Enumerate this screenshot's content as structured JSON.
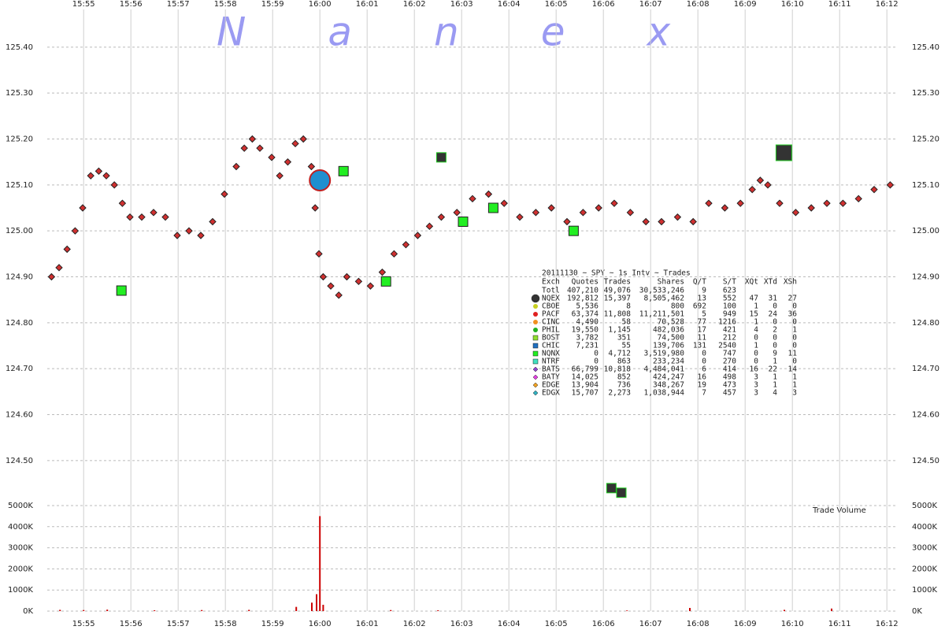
{
  "chart_data": {
    "type": "scatter",
    "watermark": "Nanex",
    "xlim": [
      954.23,
      972.23
    ],
    "xticks": [
      {
        "value": 955,
        "label": "15:55"
      },
      {
        "value": 956,
        "label": "15:56"
      },
      {
        "value": 957,
        "label": "15:57"
      },
      {
        "value": 958,
        "label": "15:58"
      },
      {
        "value": 959,
        "label": "15:59"
      },
      {
        "value": 960,
        "label": "16:00"
      },
      {
        "value": 961,
        "label": "16:01"
      },
      {
        "value": 962,
        "label": "16:02"
      },
      {
        "value": 963,
        "label": "16:03"
      },
      {
        "value": 964,
        "label": "16:04"
      },
      {
        "value": 965,
        "label": "16:05"
      },
      {
        "value": 966,
        "label": "16:06"
      },
      {
        "value": 967,
        "label": "16:07"
      },
      {
        "value": 968,
        "label": "16:08"
      },
      {
        "value": 969,
        "label": "16:09"
      },
      {
        "value": 970,
        "label": "16:10"
      },
      {
        "value": 971,
        "label": "16:11"
      },
      {
        "value": 972,
        "label": "16:12"
      }
    ],
    "ylim": [
      124.414,
      125.482
    ],
    "yticks": [
      {
        "value": 124.5,
        "label": "124.50"
      },
      {
        "value": 124.6,
        "label": "124.60"
      },
      {
        "value": 124.7,
        "label": "124.70"
      },
      {
        "value": 124.8,
        "label": "124.80"
      },
      {
        "value": 124.9,
        "label": "124.90"
      },
      {
        "value": 125.0,
        "label": "125.00"
      },
      {
        "value": 125.1,
        "label": "125.10"
      },
      {
        "value": 125.2,
        "label": "125.20"
      },
      {
        "value": 125.3,
        "label": "125.30"
      },
      {
        "value": 125.4,
        "label": "125.40"
      }
    ],
    "grid": true,
    "series": [
      {
        "color": "#d03030",
        "marker": "diamond",
        "size": 4,
        "x": [
          954.32,
          954.48,
          954.65,
          954.82,
          954.98,
          955.15,
          955.32,
          955.48,
          955.65,
          955.82,
          955.98,
          956.23,
          956.48,
          956.73,
          956.98,
          957.23,
          957.48,
          957.73,
          957.98,
          958.23,
          958.4,
          958.57,
          958.73,
          958.98,
          959.15,
          959.32,
          959.48,
          959.65,
          959.82,
          959.9,
          959.98,
          960.07,
          960.23,
          960.4,
          960.57,
          960.82,
          961.07,
          961.32,
          961.57,
          961.82,
          962.07,
          962.32,
          962.57,
          962.9,
          963.23,
          963.57,
          963.9,
          964.23,
          964.57,
          964.9,
          965.23,
          965.57,
          965.9,
          966.23,
          966.57,
          966.9,
          967.23,
          967.57,
          967.9,
          968.23,
          968.57,
          968.9,
          969.15,
          969.32,
          969.48,
          969.73,
          970.07,
          970.4,
          970.73,
          971.07,
          971.4,
          971.73,
          972.07
        ],
        "values": [
          124.9,
          124.92,
          124.96,
          125.0,
          125.05,
          125.12,
          125.13,
          125.12,
          125.1,
          125.06,
          125.03,
          125.03,
          125.04,
          125.03,
          124.99,
          125.0,
          124.99,
          125.02,
          125.08,
          125.14,
          125.18,
          125.2,
          125.18,
          125.16,
          125.12,
          125.15,
          125.19,
          125.2,
          125.14,
          125.05,
          124.95,
          124.9,
          124.88,
          124.86,
          124.9,
          124.89,
          124.88,
          124.91,
          124.95,
          124.97,
          124.99,
          125.01,
          125.03,
          125.04,
          125.07,
          125.08,
          125.06,
          125.03,
          125.04,
          125.05,
          125.02,
          125.04,
          125.05,
          125.06,
          125.04,
          125.02,
          125.02,
          125.03,
          125.02,
          125.06,
          125.05,
          125.06,
          125.09,
          125.11,
          125.1,
          125.06,
          125.04,
          125.05,
          125.06,
          125.06,
          125.07,
          125.09,
          125.1
        ]
      },
      {
        "color": "#22ee22",
        "marker": "square",
        "size": 6,
        "x": [
          955.8,
          960.5,
          961.4,
          963.03,
          963.67,
          965.37
        ],
        "values": [
          124.87,
          125.13,
          124.89,
          125.02,
          125.05,
          125.0
        ]
      },
      {
        "color": "#333333",
        "marker": "square",
        "size": 6,
        "x": [
          962.57,
          966.17,
          966.38
        ],
        "values": [
          125.16,
          124.44,
          124.43
        ]
      },
      {
        "color": "#333333",
        "marker": "square",
        "size": 10,
        "x": [
          969.82
        ],
        "values": [
          125.17
        ]
      },
      {
        "color": "#1f8fd0",
        "marker": "circle",
        "size": 13,
        "x": [
          960.0
        ],
        "values": [
          125.11
        ]
      }
    ],
    "volume": {
      "label": "Trade Volume",
      "ylim": [
        0,
        5000000
      ],
      "yticks": [
        {
          "value": 0,
          "label": "0K"
        },
        {
          "value": 1000000,
          "label": "1000K"
        },
        {
          "value": 2000000,
          "label": "2000K"
        },
        {
          "value": 3000000,
          "label": "3000K"
        },
        {
          "value": 4000000,
          "label": "4000K"
        },
        {
          "value": 5000000,
          "label": "5000K"
        }
      ],
      "color": "#cc0000",
      "x": [
        954.5,
        955.0,
        955.5,
        956.5,
        957.5,
        958.5,
        959.5,
        959.83,
        959.93,
        960.0,
        960.07,
        961.5,
        962.5,
        966.5,
        967.83,
        969.83,
        970.83
      ],
      "values": [
        60000,
        50000,
        70000,
        40000,
        50000,
        60000,
        200000,
        400000,
        800000,
        4500000,
        300000,
        50000,
        40000,
        30000,
        150000,
        60000,
        120000
      ]
    },
    "stats_table": {
      "title": "20111130 ~ SPY ~ 1s Intv ~ Trades",
      "header": [
        "Exch",
        "Quotes",
        "Trades",
        "Shares",
        "Q/T",
        "S/T",
        "XQt",
        "XTd",
        "XSh"
      ],
      "rows": [
        {
          "cells": [
            "Totl",
            "407,210",
            "49,076",
            "30,533,246",
            "9",
            "623"
          ]
        },
        {
          "cells": [
            "NQEX",
            "192,812",
            "15,397",
            "8,505,462",
            "13",
            "552",
            "47",
            "31",
            "27"
          ],
          "color": "#333333",
          "marker": "circle"
        },
        {
          "cells": [
            "CBOE",
            "5,536",
            "8",
            "800",
            "692",
            "100",
            "1",
            "0",
            "0"
          ],
          "color": "#c8d020",
          "marker": "circle"
        },
        {
          "cells": [
            "PACF",
            "63,374",
            "11,808",
            "11,211,501",
            "5",
            "949",
            "15",
            "24",
            "36"
          ],
          "color": "#e02020",
          "marker": "circle"
        },
        {
          "cells": [
            "CINC",
            "4,490",
            "58",
            "70,528",
            "77",
            "1216",
            "1",
            "0",
            "0"
          ],
          "color": "#f09020",
          "marker": "circle"
        },
        {
          "cells": [
            "PHIL",
            "19,550",
            "1,145",
            "482,036",
            "17",
            "421",
            "4",
            "2",
            "1"
          ],
          "color": "#20b020",
          "marker": "circle"
        },
        {
          "cells": [
            "BOST",
            "3,782",
            "351",
            "74,500",
            "11",
            "212",
            "0",
            "0",
            "0"
          ],
          "color": "#90e030",
          "marker": "square"
        },
        {
          "cells": [
            "CHIC",
            "7,231",
            "55",
            "139,706",
            "131",
            "2540",
            "1",
            "0",
            "0"
          ],
          "color": "#2070c0",
          "marker": "square"
        },
        {
          "cells": [
            "NQNX",
            "0",
            "4,712",
            "3,519,980",
            "0",
            "747",
            "0",
            "9",
            "11"
          ],
          "color": "#22ee22",
          "marker": "square"
        },
        {
          "cells": [
            "NTRF",
            "0",
            "863",
            "233,234",
            "0",
            "270",
            "0",
            "1",
            "0"
          ],
          "color": "#40e0c0",
          "marker": "square"
        },
        {
          "cells": [
            "BATS",
            "66,799",
            "10,818",
            "4,484,041",
            "6",
            "414",
            "16",
            "22",
            "14"
          ],
          "color": "#9040d0",
          "marker": "diamond"
        },
        {
          "cells": [
            "BATY",
            "14,025",
            "852",
            "424,247",
            "16",
            "498",
            "3",
            "1",
            "1"
          ],
          "color": "#e040e0",
          "marker": "diamond"
        },
        {
          "cells": [
            "EDGE",
            "13,904",
            "736",
            "348,267",
            "19",
            "473",
            "3",
            "1",
            "1"
          ],
          "color": "#f0a020",
          "marker": "diamond"
        },
        {
          "cells": [
            "EDGX",
            "15,707",
            "2,273",
            "1,038,944",
            "7",
            "457",
            "3",
            "4",
            "3"
          ],
          "color": "#30b0c0",
          "marker": "diamond"
        }
      ]
    }
  }
}
